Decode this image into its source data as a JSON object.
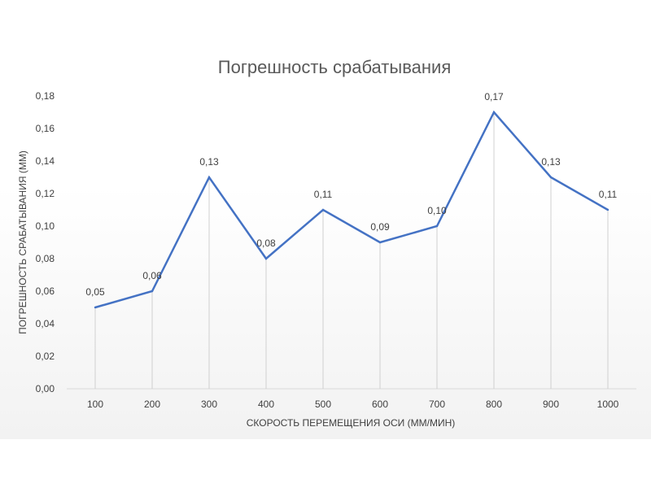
{
  "chart_data": {
    "type": "line",
    "title": "Погрешность срабатывания",
    "xlabel": "СКОРОСТЬ ПЕРЕМЕЩЕНИЯ ОСИ (ММ/МИН)",
    "ylabel": "ПОГРЕШНОСТЬ СРАБАТЫВАНИЯ (ММ)",
    "categories": [
      "100",
      "200",
      "300",
      "400",
      "500",
      "600",
      "700",
      "800",
      "900",
      "1000"
    ],
    "values": [
      0.05,
      0.06,
      0.13,
      0.08,
      0.11,
      0.09,
      0.1,
      0.17,
      0.13,
      0.11
    ],
    "data_labels": [
      "0,05",
      "0,06",
      "0,13",
      "0,08",
      "0,11",
      "0,09",
      "0,10",
      "0,17",
      "0,13",
      "0,11"
    ],
    "ylim": [
      0,
      0.18
    ],
    "y_ticks": [
      "0,00",
      "0,02",
      "0,04",
      "0,06",
      "0,08",
      "0,10",
      "0,12",
      "0,14",
      "0,16",
      "0,18"
    ],
    "drop_lines": true,
    "grid": false,
    "line_color": "#4472c4"
  }
}
